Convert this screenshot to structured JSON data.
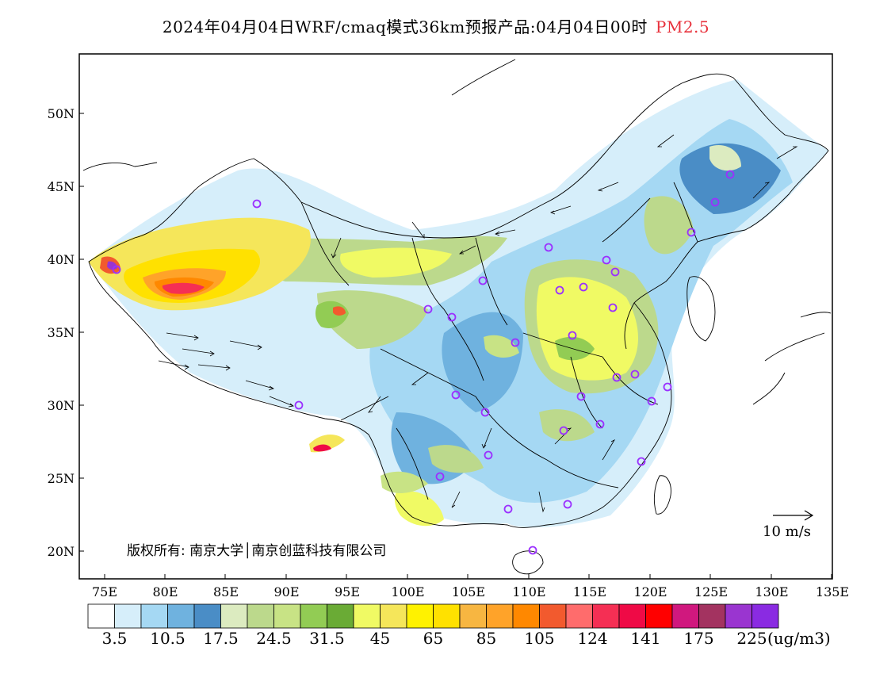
{
  "title": {
    "main": "2024年04月04日WRF/cmaq模式36km预报产品:04月04日00时",
    "species": "PM2.5",
    "species_color": "#e8323c"
  },
  "axes": {
    "lat_labels": [
      "50N",
      "45N",
      "40N",
      "35N",
      "30N",
      "25N",
      "20N"
    ],
    "lon_labels": [
      "75E",
      "80E",
      "85E",
      "90E",
      "95E",
      "100E",
      "105E",
      "110E",
      "115E",
      "120E",
      "125E",
      "130E",
      "135E"
    ]
  },
  "colorbar": {
    "colors": [
      "#ffffff",
      "#d6eefa",
      "#a5d8f3",
      "#6fb2df",
      "#4a8dc6",
      "#dcebc0",
      "#bcd98c",
      "#c8e385",
      "#92cc54",
      "#6aab35",
      "#f0fa64",
      "#f5e65a",
      "#fff200",
      "#ffe100",
      "#f7b641",
      "#ffa329",
      "#ff8800",
      "#f25a2e",
      "#ff6c6c",
      "#f52f54",
      "#ef0a46",
      "#ff0000",
      "#d0187e",
      "#a33360",
      "#9a35d0",
      "#8a2be2"
    ],
    "labels": [
      "3.5",
      "10.5",
      "17.5",
      "24.5",
      "31.5",
      "45",
      "65",
      "85",
      "105",
      "124",
      "141",
      "175",
      "225"
    ],
    "units": "(ug/m3)"
  },
  "copyright": "版权所有: 南京大学│南京创蓝科技有限公司",
  "wind_scale": "10 m/s",
  "colors": {
    "frame": "#000000",
    "station_marker": "#9b30ff",
    "wind_arrow": "#000000"
  }
}
